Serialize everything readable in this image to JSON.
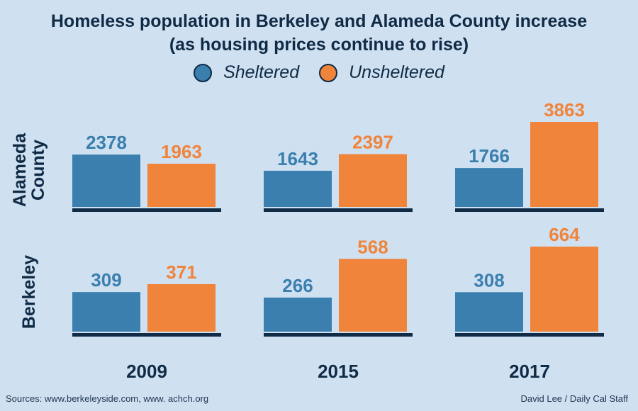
{
  "title_line1": "Homeless population in Berkeley and Alameda County increase",
  "title_line2": "(as housing prices continue to rise)",
  "legend": [
    {
      "label": "Sheltered",
      "color": "#3a7fae"
    },
    {
      "label": "Unsheltered",
      "color": "#f0843a"
    }
  ],
  "sources": "Sources: www.berkeleyside.com, www. achch.org",
  "credit": "David Lee / Daily Cal Staff",
  "chart_data": {
    "type": "bar",
    "categories": [
      "2009",
      "2015",
      "2017"
    ],
    "groups": [
      {
        "name": "Alameda County",
        "row_label_lines": [
          "Alameda",
          "County"
        ],
        "series": [
          {
            "name": "Sheltered",
            "values": [
              2378,
              1643,
              1766
            ]
          },
          {
            "name": "Unsheltered",
            "values": [
              1963,
              2397,
              3863
            ]
          }
        ]
      },
      {
        "name": "Berkeley",
        "row_label_lines": [
          "Berkeley"
        ],
        "series": [
          {
            "name": "Sheltered",
            "values": [
              309,
              266,
              308
            ]
          },
          {
            "name": "Unsheltered",
            "values": [
              371,
              568,
              664
            ]
          }
        ]
      }
    ],
    "colors": {
      "Sheltered": "#3a7fae",
      "Unsheltered": "#f0843a",
      "baseline": "#0f2b45"
    },
    "grid": false,
    "legend_position": "top-center"
  }
}
